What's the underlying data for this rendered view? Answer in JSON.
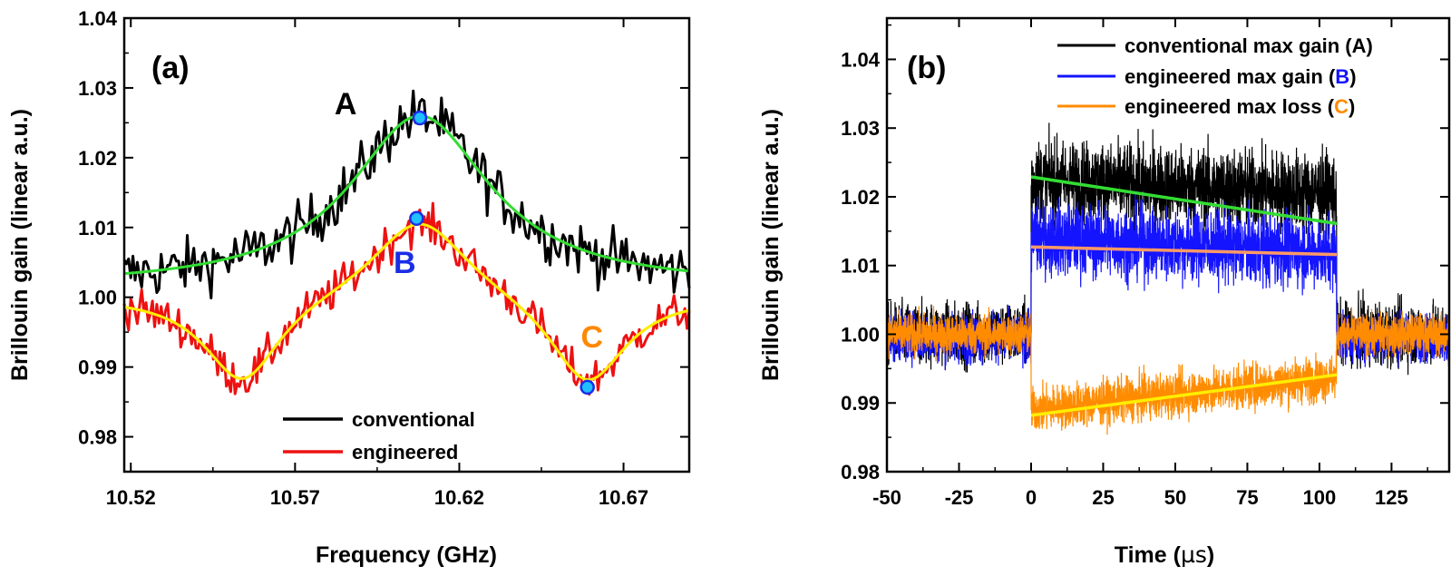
{
  "chart_data": [
    {
      "type": "line",
      "panel_label": "(a)",
      "xlabel": "Frequency (GHz)",
      "ylabel": "Brillouin gain (linear a.u.)",
      "xlim": [
        10.518,
        10.69
      ],
      "ylim": [
        0.975,
        1.04
      ],
      "x_ticks": [
        10.52,
        10.57,
        10.62,
        10.67
      ],
      "x_tick_labels": [
        "10.52",
        "10.57",
        "10.62",
        "10.67"
      ],
      "y_ticks": [
        0.98,
        0.99,
        1.0,
        1.01,
        1.02,
        1.03,
        1.04
      ],
      "y_tick_labels": [
        "0.98",
        "0.99",
        "1.00",
        "1.01",
        "1.02",
        "1.03",
        "1.04"
      ],
      "legend": {
        "position": "bottom-center",
        "entries": [
          {
            "label": "conventional",
            "color": "#000000"
          },
          {
            "label": "engineered",
            "color": "#ee1111"
          }
        ]
      },
      "series": [
        {
          "name": "conventional",
          "color": "#000000",
          "kind": "noisy-data",
          "model": {
            "base": 1.0015,
            "peaks": [
              {
                "center": 10.608,
                "amp": 0.0245,
                "width": 0.026
              }
            ]
          },
          "noise": 0.0028
        },
        {
          "name": "conventional fit",
          "color": "#33dd33",
          "kind": "fit",
          "model": {
            "base": 1.0015,
            "peaks": [
              {
                "center": 10.608,
                "amp": 0.0245,
                "width": 0.026
              }
            ]
          }
        },
        {
          "name": "engineered",
          "color": "#ee1111",
          "kind": "noisy-data",
          "model": {
            "base": 1.0,
            "peaks": [
              {
                "center": 10.608,
                "amp": 0.0123,
                "width": 0.0185
              },
              {
                "center": 10.554,
                "amp": -0.0127,
                "width": 0.0145
              },
              {
                "center": 10.659,
                "amp": -0.013,
                "width": 0.0145
              }
            ]
          },
          "noise": 0.002
        },
        {
          "name": "engineered fit",
          "color": "#ffee00",
          "kind": "fit",
          "model": {
            "base": 1.0,
            "peaks": [
              {
                "center": 10.608,
                "amp": 0.0123,
                "width": 0.0185
              },
              {
                "center": 10.554,
                "amp": -0.0127,
                "width": 0.0145
              },
              {
                "center": 10.659,
                "amp": -0.013,
                "width": 0.0145
              }
            ]
          }
        }
      ],
      "markers": [
        {
          "x": 10.608,
          "y": 1.0257
        },
        {
          "x": 10.607,
          "y": 1.0113
        },
        {
          "x": 10.659,
          "y": 0.9871
        }
      ],
      "annotations": [
        {
          "text": "A",
          "x": 10.582,
          "y": 1.0262,
          "color": "#000000"
        },
        {
          "text": "B",
          "x": 10.6,
          "y": 1.0035,
          "color": "#1a2ee6"
        },
        {
          "text": "C",
          "x": 10.657,
          "y": 0.9928,
          "color": "#ff8800"
        }
      ]
    },
    {
      "type": "line",
      "panel_label": "(b)",
      "xlabel_prefix": "Time (",
      "xlabel_unit": "µs",
      "xlabel_suffix": ")",
      "ylabel": "Brillouin gain (linear a.u.)",
      "xlim": [
        -50,
        145
      ],
      "ylim": [
        0.98,
        1.046
      ],
      "x_ticks": [
        -50,
        -25,
        0,
        25,
        50,
        75,
        100,
        125
      ],
      "x_tick_labels": [
        "-50",
        "-25",
        "0",
        "25",
        "50",
        "75",
        "100",
        "125"
      ],
      "y_ticks": [
        0.98,
        0.99,
        1.0,
        1.01,
        1.02,
        1.03,
        1.04
      ],
      "y_tick_labels": [
        "0.98",
        "0.99",
        "1.00",
        "1.01",
        "1.02",
        "1.03",
        "1.04"
      ],
      "pulse_window": [
        0,
        106
      ],
      "legend": {
        "position": "top-right",
        "entries": [
          {
            "prefix": "conventional max gain (",
            "tag": "A",
            "suffix": ")",
            "color": "#000000",
            "tag_color": "#000000"
          },
          {
            "prefix": "engineered max gain (",
            "tag": "B",
            "suffix": ")",
            "color": "#1414ff",
            "tag_color": "#1414ff"
          },
          {
            "prefix": "engineered max loss (",
            "tag": "C",
            "suffix": ")",
            "color": "#ff8c00",
            "tag_color": "#ff8c00"
          }
        ]
      },
      "series": [
        {
          "name": "conventional max gain (A)",
          "color": "#000000",
          "kind": "trace",
          "outside_level": 1.0,
          "outside_noise": 0.0058,
          "inside_start": 1.0225,
          "inside_end": 1.0205,
          "inside_noise": 0.0075
        },
        {
          "name": "engineered max gain (B)",
          "color": "#1414ff",
          "kind": "trace",
          "outside_level": 0.9995,
          "outside_noise": 0.0045,
          "inside_start": 1.014,
          "inside_end": 1.012,
          "inside_noise": 0.0068
        },
        {
          "name": "engineered max loss (C)",
          "color": "#ff8c00",
          "kind": "trace",
          "outside_level": 1.0,
          "outside_noise": 0.0038,
          "inside_start": 0.989,
          "inside_end": 0.9938,
          "inside_noise": 0.0042
        }
      ],
      "fits": [
        {
          "name": "gain fit",
          "color": "#33dd33",
          "x": [
            0,
            106
          ],
          "y": [
            1.0229,
            1.0161
          ]
        },
        {
          "name": "engineered gain fit",
          "color": "#ff9966",
          "x": [
            0,
            106
          ],
          "y": [
            1.0127,
            1.0116
          ]
        },
        {
          "name": "loss fit",
          "color": "#ffee00",
          "x": [
            0,
            106
          ],
          "y": [
            0.9882,
            0.9941
          ]
        }
      ]
    }
  ]
}
